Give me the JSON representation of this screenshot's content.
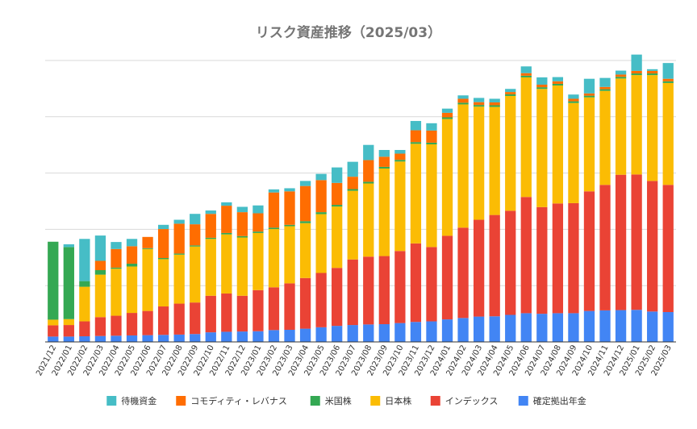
{
  "chart_data": {
    "type": "bar",
    "stacked": true,
    "title": "リスク資産推移（2025/03）",
    "xlabel": "",
    "ylabel": "",
    "ylim": [
      0,
      100
    ],
    "y_tick_values": [
      0,
      20,
      40,
      60,
      80,
      100
    ],
    "y_tick_labels_visible": false,
    "grid": true,
    "legend_position": "bottom",
    "categories": [
      "2021/12",
      "2022/01",
      "2022/02",
      "2022/03",
      "2022/04",
      "2022/05",
      "2022/06",
      "2022/07",
      "2022/08",
      "2022/09",
      "2022/10",
      "2022/11",
      "2022/12",
      "2023/01",
      "2023/02",
      "2023/03",
      "2023/04",
      "2023/05",
      "2023/06",
      "2023/07",
      "2023/08",
      "2023/09",
      "2023/10",
      "2023/11",
      "2023/12",
      "2024/01",
      "2024/02",
      "2024/03",
      "2024/04",
      "2024/05",
      "2024/06",
      "2024/07",
      "2024/08",
      "2024/09",
      "2024/10",
      "2024/11",
      "2024/12",
      "2025/01",
      "2025/02",
      "2025/03"
    ],
    "series": [
      {
        "name": "確定拠出年金",
        "color": "#4285f4",
        "values": [
          1.9,
          1.9,
          2.0,
          2.1,
          2.2,
          2.3,
          2.4,
          2.5,
          2.6,
          2.8,
          3.4,
          3.6,
          3.7,
          3.8,
          4.2,
          4.3,
          4.7,
          5.2,
          5.7,
          6.0,
          6.2,
          6.3,
          6.7,
          7.1,
          7.3,
          8.0,
          8.5,
          9.0,
          9.1,
          9.6,
          10.2,
          10.0,
          10.2,
          10.2,
          11.0,
          11.2,
          11.3,
          11.4,
          10.8,
          10.6
        ]
      },
      {
        "name": "インデックス",
        "color": "#ea4335",
        "values": [
          4.0,
          4.1,
          5.3,
          6.7,
          7.1,
          8.0,
          8.6,
          10.1,
          11.0,
          11.2,
          13.0,
          13.6,
          12.7,
          14.6,
          15.2,
          16.5,
          18.0,
          19.3,
          20.6,
          23.3,
          24.1,
          24.2,
          25.6,
          27.9,
          26.4,
          29.7,
          32.1,
          34.4,
          36.0,
          37.0,
          41.3,
          37.9,
          39.0,
          39.1,
          42.5,
          44.6,
          48.1,
          48.1,
          46.4,
          45.2
        ]
      },
      {
        "name": "日本株",
        "color": "#fbbc04",
        "values": [
          2.0,
          2.1,
          12.3,
          15.1,
          16.7,
          16.5,
          22.0,
          16.8,
          17.4,
          19.9,
          20.2,
          21.0,
          20.7,
          20.3,
          20.7,
          20.3,
          19.5,
          20.9,
          21.8,
          24.4,
          26.0,
          31.1,
          31.8,
          35.4,
          36.5,
          41.5,
          43.8,
          40.2,
          38.4,
          40.8,
          42.5,
          42.0,
          41.9,
          35.6,
          33.4,
          33.4,
          34.2,
          35.3,
          37.6,
          36.2
        ]
      },
      {
        "name": "米国株",
        "color": "#34a853",
        "values": [
          27.7,
          25.6,
          2.0,
          1.6,
          0.4,
          1.0,
          0.3,
          0.4,
          0.4,
          0.4,
          0.4,
          0.5,
          0.5,
          0.5,
          0.5,
          0.5,
          0.7,
          0.7,
          0.6,
          0.6,
          0.6,
          0.6,
          0.6,
          0.6,
          0.6,
          0.6,
          0.6,
          0.6,
          0.6,
          0.6,
          0.6,
          0.6,
          0.6,
          0.6,
          0.6,
          0.6,
          0.6,
          0.6,
          0.6,
          0.6
        ]
      },
      {
        "name": "コモディティ・レバナス",
        "color": "#ff6d01",
        "values": [
          0,
          0,
          0,
          3.3,
          6.6,
          6.2,
          4.0,
          10.3,
          10.6,
          7.5,
          8.5,
          9.7,
          8.5,
          6.5,
          12.5,
          11.9,
          12.5,
          11.4,
          7.8,
          4.4,
          7.7,
          3.6,
          2.2,
          4.2,
          4.3,
          1.6,
          1.4,
          1.0,
          1.0,
          0.8,
          0.9,
          0.9,
          0.9,
          0.9,
          0.8,
          0.8,
          0.8,
          0.9,
          0.9,
          0.9
        ]
      },
      {
        "name": "待機資金",
        "color": "#46bdc6",
        "values": [
          0,
          1.0,
          15.0,
          9.0,
          2.5,
          2.6,
          0,
          1.5,
          1.4,
          3.7,
          1.2,
          1.2,
          1.9,
          2.8,
          1.1,
          1.1,
          1.8,
          2.2,
          5.5,
          5.3,
          5.4,
          2.4,
          1.3,
          3.3,
          2.6,
          1.5,
          1.2,
          1.5,
          1.3,
          1.1,
          2.4,
          2.6,
          1.5,
          1.5,
          5.2,
          3.2,
          1.4,
          5.8,
          0.6,
          5.6
        ]
      }
    ]
  }
}
